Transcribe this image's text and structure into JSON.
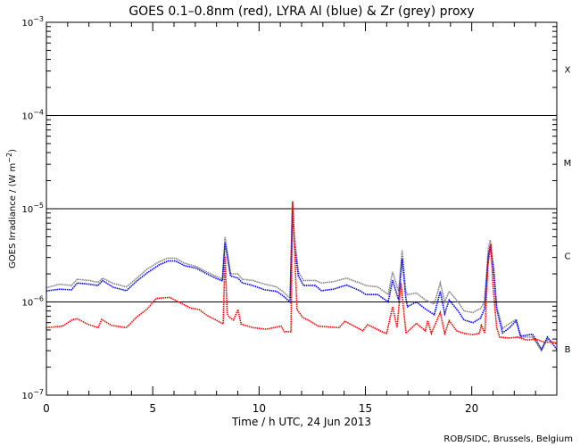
{
  "chart_data": {
    "type": "line",
    "title": "GOES 0.1–0.8nm (red), LYRA Al (blue) & Zr (grey) proxy",
    "xlabel": "Time / h UTC, 24 Jun 2013",
    "ylabel": "GOES Irradiance / (W m",
    "ylabel_exp": "−2",
    "ylabel_end": ")",
    "xlim": [
      0,
      24
    ],
    "ylim": [
      1e-07,
      0.001
    ],
    "yscale": "log",
    "xticks": [
      0,
      5,
      10,
      15,
      20
    ],
    "xtick_labels": [
      "0",
      "5",
      "10",
      "15",
      "20"
    ],
    "yticks": [
      {
        "value": 0.001,
        "base": "10",
        "exp": "−3"
      },
      {
        "value": 0.0001,
        "base": "10",
        "exp": "−4"
      },
      {
        "value": 1e-05,
        "base": "10",
        "exp": "−5"
      },
      {
        "value": 1e-06,
        "base": "10",
        "exp": "−6"
      },
      {
        "value": 1e-07,
        "base": "10",
        "exp": "−7"
      }
    ],
    "threshold_lines": [
      0.0001,
      1e-05,
      1e-06
    ],
    "flare_classes": [
      {
        "label": "X",
        "value": 0.000316
      },
      {
        "label": "M",
        "value": 3.16e-05
      },
      {
        "label": "C",
        "value": 3.16e-06
      },
      {
        "label": "B",
        "value": 3.16e-07
      }
    ],
    "credit": "ROB/SIDC, Brussels, Belgium",
    "series": [
      {
        "name": "LYRA Zr proxy",
        "color": "#808080",
        "points": [
          [
            0,
            1.42e-06
          ],
          [
            0.62,
            1.55e-06
          ],
          [
            1.18,
            1.5e-06
          ],
          [
            1.45,
            1.75e-06
          ],
          [
            2.0,
            1.7e-06
          ],
          [
            2.43,
            1.62e-06
          ],
          [
            2.64,
            1.8e-06
          ],
          [
            3.14,
            1.58e-06
          ],
          [
            3.76,
            1.45e-06
          ],
          [
            4.25,
            1.8e-06
          ],
          [
            4.74,
            2.25e-06
          ],
          [
            5.3,
            2.7e-06
          ],
          [
            5.72,
            2.95e-06
          ],
          [
            6.07,
            2.95e-06
          ],
          [
            6.49,
            2.6e-06
          ],
          [
            7.05,
            2.4e-06
          ],
          [
            7.54,
            2.1e-06
          ],
          [
            7.96,
            1.9e-06
          ],
          [
            8.28,
            1.75e-06
          ],
          [
            8.4,
            5e-06
          ],
          [
            8.66,
            2e-06
          ],
          [
            9.01,
            2e-06
          ],
          [
            9.22,
            1.75e-06
          ],
          [
            9.7,
            1.7e-06
          ],
          [
            10.27,
            1.55e-06
          ],
          [
            10.83,
            1.45e-06
          ],
          [
            11.11,
            1.3e-06
          ],
          [
            11.46,
            1.1e-06
          ],
          [
            11.57,
            1.2e-05
          ],
          [
            11.66,
            5e-06
          ],
          [
            11.85,
            2.1e-06
          ],
          [
            12.09,
            1.7e-06
          ],
          [
            12.64,
            1.7e-06
          ],
          [
            12.93,
            1.6e-06
          ],
          [
            13.49,
            1.65e-06
          ],
          [
            14.11,
            1.8e-06
          ],
          [
            14.74,
            1.6e-06
          ],
          [
            15.02,
            1.5e-06
          ],
          [
            15.58,
            1.45e-06
          ],
          [
            16.07,
            1.2e-06
          ],
          [
            16.28,
            2.1e-06
          ],
          [
            16.56,
            1.3e-06
          ],
          [
            16.73,
            3.6e-06
          ],
          [
            16.9,
            1.3e-06
          ],
          [
            16.98,
            1.2e-06
          ],
          [
            17.4,
            1.25e-06
          ],
          [
            17.82,
            1.05e-06
          ],
          [
            18.24,
            9.5e-07
          ],
          [
            18.52,
            1.6e-06
          ],
          [
            18.73,
            1e-06
          ],
          [
            18.94,
            1.3e-06
          ],
          [
            19.36,
            1e-06
          ],
          [
            19.64,
            8e-07
          ],
          [
            20.06,
            7.7e-07
          ],
          [
            20.41,
            8.5e-07
          ],
          [
            20.6,
            1e-06
          ],
          [
            20.78,
            3.8e-06
          ],
          [
            20.87,
            4.6e-06
          ],
          [
            21.04,
            2.3e-06
          ],
          [
            21.17,
            9e-07
          ],
          [
            21.45,
            5.2e-07
          ],
          [
            21.74,
            5.8e-07
          ],
          [
            22.09,
            6.5e-07
          ],
          [
            22.3,
            4.2e-07
          ],
          [
            22.86,
            4.2e-07
          ],
          [
            23.28,
            3e-07
          ],
          [
            23.56,
            4e-07
          ],
          [
            24.0,
            3.5e-07
          ]
        ]
      },
      {
        "name": "LYRA Al proxy",
        "color": "#0000ff",
        "points": [
          [
            0,
            1.31e-06
          ],
          [
            0.62,
            1.37e-06
          ],
          [
            1.18,
            1.35e-06
          ],
          [
            1.45,
            1.6e-06
          ],
          [
            2.0,
            1.55e-06
          ],
          [
            2.43,
            1.5e-06
          ],
          [
            2.64,
            1.7e-06
          ],
          [
            3.14,
            1.44e-06
          ],
          [
            3.76,
            1.32e-06
          ],
          [
            4.25,
            1.68e-06
          ],
          [
            4.74,
            2.05e-06
          ],
          [
            5.3,
            2.5e-06
          ],
          [
            5.72,
            2.75e-06
          ],
          [
            6.07,
            2.75e-06
          ],
          [
            6.49,
            2.45e-06
          ],
          [
            7.05,
            2.3e-06
          ],
          [
            7.54,
            2e-06
          ],
          [
            7.96,
            1.8e-06
          ],
          [
            8.28,
            1.68e-06
          ],
          [
            8.4,
            4.3e-06
          ],
          [
            8.66,
            1.9e-06
          ],
          [
            9.01,
            1.8e-06
          ],
          [
            9.22,
            1.6e-06
          ],
          [
            9.7,
            1.5e-06
          ],
          [
            10.27,
            1.35e-06
          ],
          [
            10.83,
            1.3e-06
          ],
          [
            11.11,
            1.17e-06
          ],
          [
            11.46,
            1e-06
          ],
          [
            11.57,
            1.05e-05
          ],
          [
            11.66,
            4.2e-06
          ],
          [
            11.85,
            1.9e-06
          ],
          [
            12.09,
            1.5e-06
          ],
          [
            12.64,
            1.5e-06
          ],
          [
            12.93,
            1.32e-06
          ],
          [
            13.49,
            1.37e-06
          ],
          [
            14.11,
            1.52e-06
          ],
          [
            14.74,
            1.32e-06
          ],
          [
            15.02,
            1.2e-06
          ],
          [
            15.58,
            1.2e-06
          ],
          [
            16.07,
            1e-06
          ],
          [
            16.28,
            1.71e-06
          ],
          [
            16.56,
            1.05e-06
          ],
          [
            16.73,
            2.9e-06
          ],
          [
            16.9,
            1.1e-06
          ],
          [
            16.98,
            8.9e-07
          ],
          [
            17.4,
            1e-06
          ],
          [
            17.82,
            8.4e-07
          ],
          [
            18.24,
            7.3e-07
          ],
          [
            18.52,
            1.3e-06
          ],
          [
            18.73,
            7.5e-07
          ],
          [
            18.94,
            1.05e-06
          ],
          [
            19.36,
            8e-07
          ],
          [
            19.64,
            6.4e-07
          ],
          [
            20.06,
            6e-07
          ],
          [
            20.41,
            6.7e-07
          ],
          [
            20.6,
            8.4e-07
          ],
          [
            20.78,
            3.1e-06
          ],
          [
            20.87,
            4e-06
          ],
          [
            21.04,
            2e-06
          ],
          [
            21.17,
            8.4e-07
          ],
          [
            21.45,
            4.65e-07
          ],
          [
            21.74,
            5.2e-07
          ],
          [
            22.09,
            6.3e-07
          ],
          [
            22.3,
            4.3e-07
          ],
          [
            22.86,
            4.5e-07
          ],
          [
            23.28,
            3.1e-07
          ],
          [
            23.56,
            4.2e-07
          ],
          [
            24.0,
            3.1e-07
          ]
        ]
      },
      {
        "name": "GOES 0.1-0.8nm",
        "color": "#ff0000",
        "points": [
          [
            0,
            5.3e-07
          ],
          [
            0.76,
            5.5e-07
          ],
          [
            1.25,
            6.5e-07
          ],
          [
            1.45,
            6.6e-07
          ],
          [
            2.0,
            5.7e-07
          ],
          [
            2.43,
            5.3e-07
          ],
          [
            2.6,
            6.5e-07
          ],
          [
            3.06,
            5.6e-07
          ],
          [
            3.76,
            5.3e-07
          ],
          [
            4.25,
            6.9e-07
          ],
          [
            4.74,
            8.4e-07
          ],
          [
            5.16,
            1.09e-06
          ],
          [
            5.79,
            1.12e-06
          ],
          [
            6.21,
            1e-06
          ],
          [
            6.77,
            8.6e-07
          ],
          [
            7.18,
            8.3e-07
          ],
          [
            7.54,
            7.2e-07
          ],
          [
            8.03,
            6.3e-07
          ],
          [
            8.31,
            5.8e-07
          ],
          [
            8.4,
            3.1e-06
          ],
          [
            8.5,
            7.5e-07
          ],
          [
            8.59,
            6.9e-07
          ],
          [
            8.8,
            6.4e-07
          ],
          [
            9.01,
            8.3e-07
          ],
          [
            9.15,
            5.8e-07
          ],
          [
            9.7,
            5.3e-07
          ],
          [
            10.34,
            5.1e-07
          ],
          [
            11.04,
            5.5e-07
          ],
          [
            11.18,
            4.8e-07
          ],
          [
            11.5,
            4.8e-07
          ],
          [
            11.57,
            1.2e-05
          ],
          [
            11.66,
            4.2e-06
          ],
          [
            11.78,
            8.3e-07
          ],
          [
            12.06,
            6.8e-07
          ],
          [
            12.36,
            6.3e-07
          ],
          [
            12.78,
            5.5e-07
          ],
          [
            13.76,
            5.3e-07
          ],
          [
            14.04,
            6.2e-07
          ],
          [
            14.88,
            4.9e-07
          ],
          [
            15.1,
            5.7e-07
          ],
          [
            15.86,
            4.7e-07
          ],
          [
            16.0,
            4.6e-07
          ],
          [
            16.28,
            8.9e-07
          ],
          [
            16.49,
            5.3e-07
          ],
          [
            16.67,
            1.6e-06
          ],
          [
            16.91,
            4.6e-07
          ],
          [
            17.4,
            5.9e-07
          ],
          [
            17.82,
            4.9e-07
          ],
          [
            17.93,
            6.3e-07
          ],
          [
            18.1,
            4.6e-07
          ],
          [
            18.52,
            7.7e-07
          ],
          [
            18.73,
            4.6e-07
          ],
          [
            18.94,
            6.3e-07
          ],
          [
            19.29,
            4.9e-07
          ],
          [
            19.64,
            4.6e-07
          ],
          [
            20.06,
            4.45e-07
          ],
          [
            20.36,
            4.6e-07
          ],
          [
            20.45,
            5.6e-07
          ],
          [
            20.62,
            4.6e-07
          ],
          [
            20.76,
            2.5e-06
          ],
          [
            20.9,
            4.2e-06
          ],
          [
            21.0,
            1.5e-06
          ],
          [
            21.17,
            5.3e-07
          ],
          [
            21.31,
            4.2e-07
          ],
          [
            21.74,
            4.1e-07
          ],
          [
            22.16,
            4.2e-07
          ],
          [
            22.58,
            3.9e-07
          ],
          [
            23.0,
            4e-07
          ],
          [
            23.41,
            3.7e-07
          ],
          [
            23.83,
            3.7e-07
          ],
          [
            24.0,
            3.6e-07
          ]
        ]
      }
    ]
  }
}
